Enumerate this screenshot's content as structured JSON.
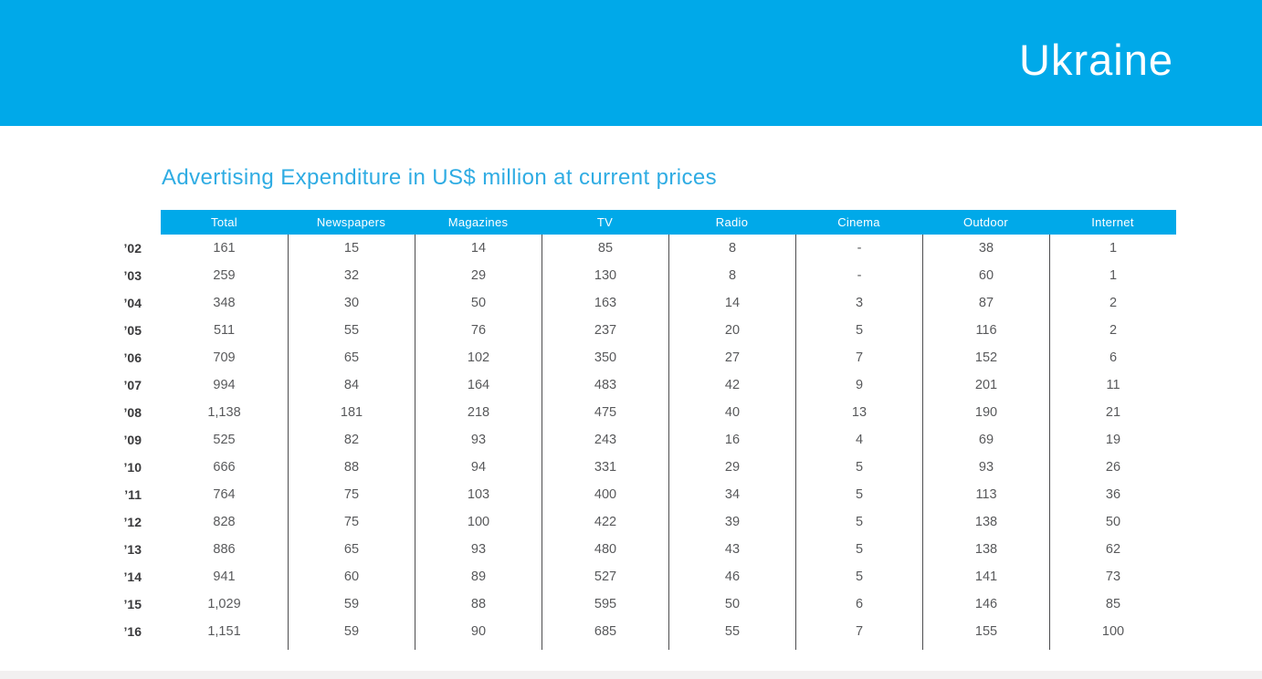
{
  "header": {
    "country": "Ukraine",
    "band_color": "#00A9E9",
    "text_color": "#FFFFFF"
  },
  "section": {
    "title": "Advertising Expenditure in US$ million at current prices",
    "title_color": "#2FACE3"
  },
  "table": {
    "header_background": "#00A9E9",
    "header_text_color": "#FFFFFF",
    "cell_text_color": "#58595B",
    "separator_color": "#4D4D4F",
    "columns": [
      "Total",
      "Newspapers",
      "Magazines",
      "TV",
      "Radio",
      "Cinema",
      "Outdoor",
      "Internet"
    ],
    "rows": [
      {
        "year": "’02",
        "values": [
          "161",
          "15",
          "14",
          "85",
          "8",
          "-",
          "38",
          "1"
        ]
      },
      {
        "year": "’03",
        "values": [
          "259",
          "32",
          "29",
          "130",
          "8",
          "-",
          "60",
          "1"
        ]
      },
      {
        "year": "’04",
        "values": [
          "348",
          "30",
          "50",
          "163",
          "14",
          "3",
          "87",
          "2"
        ]
      },
      {
        "year": "’05",
        "values": [
          "511",
          "55",
          "76",
          "237",
          "20",
          "5",
          "116",
          "2"
        ]
      },
      {
        "year": "’06",
        "values": [
          "709",
          "65",
          "102",
          "350",
          "27",
          "7",
          "152",
          "6"
        ]
      },
      {
        "year": "’07",
        "values": [
          "994",
          "84",
          "164",
          "483",
          "42",
          "9",
          "201",
          "11"
        ]
      },
      {
        "year": "’08",
        "values": [
          "1,138",
          "181",
          "218",
          "475",
          "40",
          "13",
          "190",
          "21"
        ]
      },
      {
        "year": "’09",
        "values": [
          "525",
          "82",
          "93",
          "243",
          "16",
          "4",
          "69",
          "19"
        ]
      },
      {
        "year": "’10",
        "values": [
          "666",
          "88",
          "94",
          "331",
          "29",
          "5",
          "93",
          "26"
        ]
      },
      {
        "year": "’11",
        "values": [
          "764",
          "75",
          "103",
          "400",
          "34",
          "5",
          "113",
          "36"
        ]
      },
      {
        "year": "’12",
        "values": [
          "828",
          "75",
          "100",
          "422",
          "39",
          "5",
          "138",
          "50"
        ]
      },
      {
        "year": "’13",
        "values": [
          "886",
          "65",
          "93",
          "480",
          "43",
          "5",
          "138",
          "62"
        ]
      },
      {
        "year": "’14",
        "values": [
          "941",
          "60",
          "89",
          "527",
          "46",
          "5",
          "141",
          "73"
        ]
      },
      {
        "year": "’15",
        "values": [
          "1,029",
          "59",
          "88",
          "595",
          "50",
          "6",
          "146",
          "85"
        ]
      },
      {
        "year": "’16",
        "values": [
          "1,151",
          "59",
          "90",
          "685",
          "55",
          "7",
          "155",
          "100"
        ]
      }
    ]
  }
}
